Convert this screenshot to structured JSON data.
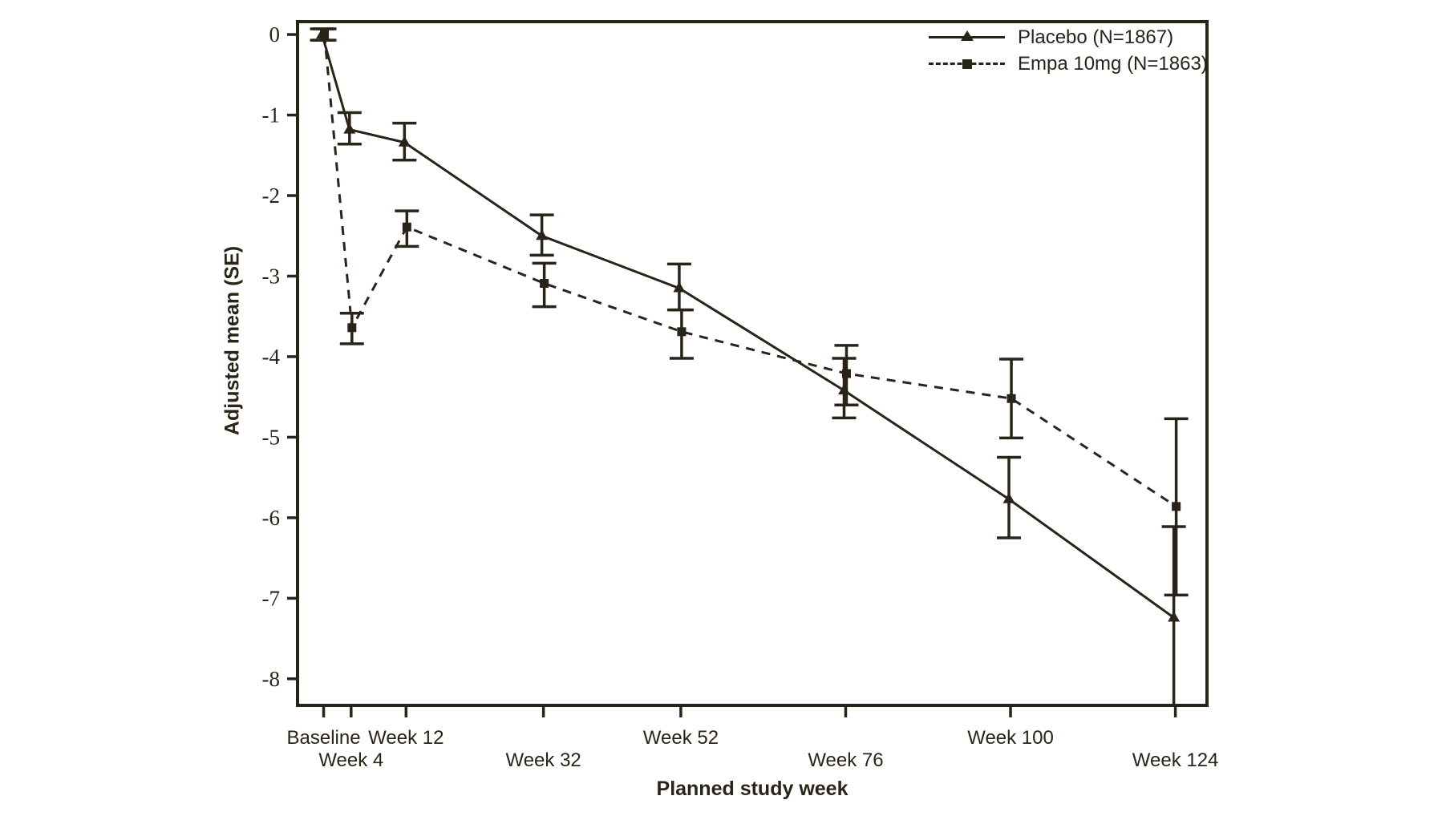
{
  "figure": {
    "background": "#ffffff",
    "ink_color": "#2a2318"
  },
  "chart_data": {
    "type": "line",
    "title": "",
    "xlabel": "Planned study week",
    "ylabel": "Adjusted mean (SE)",
    "grid": false,
    "legend_position": "top-right-inside",
    "ylim": [
      -8.33,
      0.16
    ],
    "yticks": [
      0,
      -1,
      -2,
      -3,
      -4,
      -5,
      -6,
      -7,
      -8
    ],
    "ytick_labels": [
      "0",
      "-1",
      "-2",
      "-3",
      "-4",
      "-5",
      "-6",
      "-7",
      "-8"
    ],
    "xticks": [
      {
        "week": 0,
        "label": "Baseline",
        "row": 1
      },
      {
        "week": 4,
        "label": "Week 4",
        "row": 2
      },
      {
        "week": 12,
        "label": "Week 12",
        "row": 1
      },
      {
        "week": 32,
        "label": "Week 32",
        "row": 2
      },
      {
        "week": 52,
        "label": "Week 52",
        "row": 1
      },
      {
        "week": 76,
        "label": "Week 76",
        "row": 2
      },
      {
        "week": 100,
        "label": "Week 100",
        "row": 1
      },
      {
        "week": 124,
        "label": "Week 124",
        "row": 2
      }
    ],
    "series": [
      {
        "name": "Placebo (N=1867)",
        "line_style": "solid",
        "marker": "triangle",
        "x_weeks": [
          0,
          4,
          12,
          32,
          52,
          76,
          100,
          124
        ],
        "values": [
          0.0,
          -1.18,
          -1.34,
          -2.5,
          -3.15,
          -4.42,
          -5.77,
          -7.24
        ],
        "err_high": [
          0.07,
          -0.97,
          -1.1,
          -2.24,
          -2.85,
          -4.02,
          -5.25,
          -6.11
        ],
        "err_low": [
          -0.07,
          -1.36,
          -1.56,
          -2.74,
          -3.42,
          -4.76,
          -6.25,
          -8.45
        ]
      },
      {
        "name": "Empa 10mg (N=1863)",
        "line_style": "dashed",
        "marker": "square",
        "x_weeks": [
          0,
          4,
          12,
          32,
          52,
          76,
          100,
          124
        ],
        "values": [
          0.0,
          -3.64,
          -2.39,
          -3.09,
          -3.69,
          -4.21,
          -4.52,
          -5.86
        ],
        "err_high": [
          0.07,
          -3.46,
          -2.19,
          -2.84,
          -3.42,
          -3.86,
          -4.03,
          -4.77
        ],
        "err_low": [
          -0.07,
          -3.84,
          -2.63,
          -3.38,
          -4.02,
          -4.6,
          -5.01,
          -6.96
        ]
      }
    ]
  }
}
